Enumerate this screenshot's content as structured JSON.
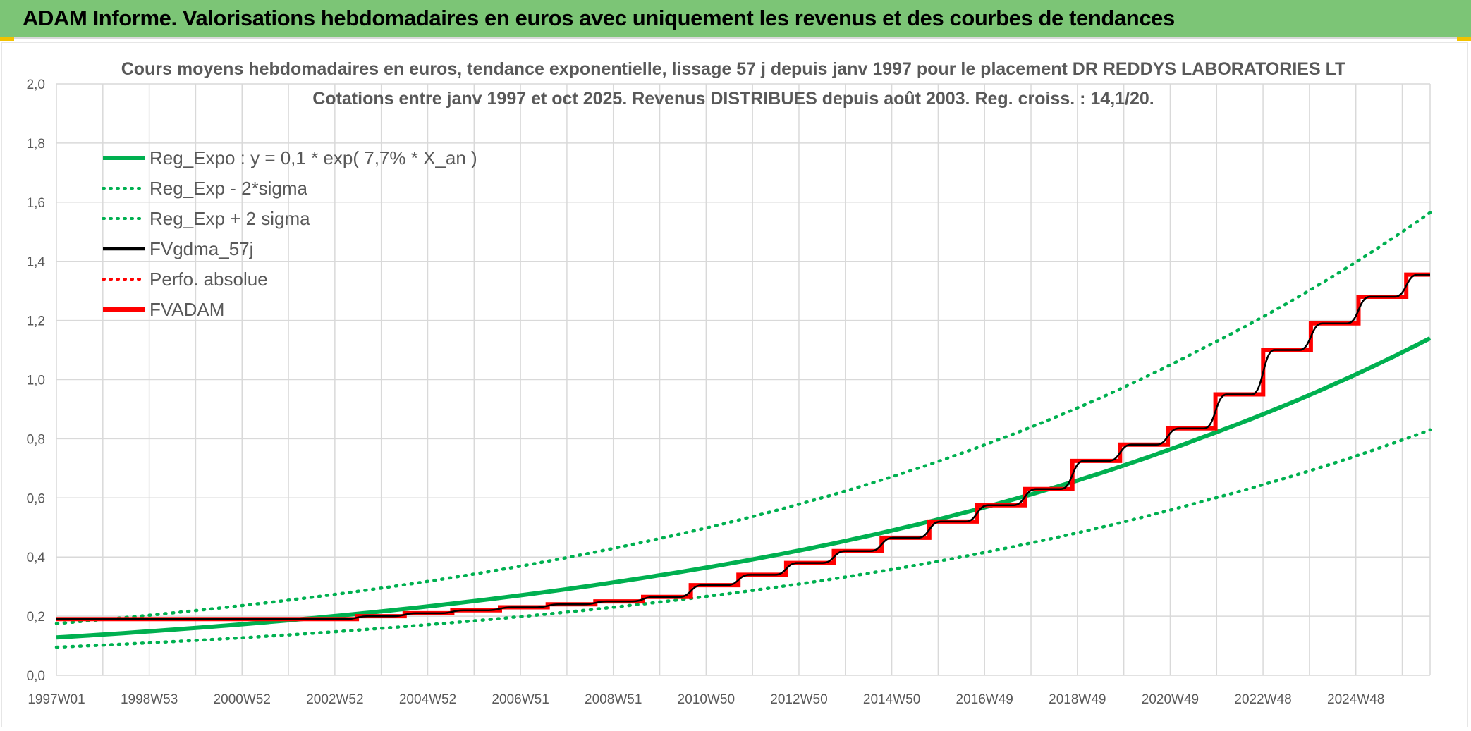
{
  "header": {
    "title": "ADAM Informe. Valorisations hebdomadaires en euros avec uniquement les revenus et des courbes de tendances"
  },
  "colors": {
    "banner": "#7cc576",
    "reg_green": "#00b050",
    "fv_black": "#000000",
    "adam_red": "#ff0000",
    "grid": "#d9d9d9",
    "text": "#595959"
  },
  "chart_data": {
    "type": "line",
    "title_lines": [
      "Cours moyens hebdomadaires en euros, tendance exponentielle, lissage 57 j depuis janv 1997 pour le placement DR REDDYS LABORATORIES LT",
      "Cotations entre janv 1997 et oct 2025. Revenus DISTRIBUES depuis août 2003. Reg. croiss. : 14,1/20."
    ],
    "x_tick_labels": [
      "1997W01",
      "1998W53",
      "2000W52",
      "2002W52",
      "2004W52",
      "2006W51",
      "2008W51",
      "2010W50",
      "2012W50",
      "2014W50",
      "2016W49",
      "2018W49",
      "2020W49",
      "2022W48",
      "2024W48"
    ],
    "x_range": [
      1997.0,
      2025.8
    ],
    "y_range": [
      0,
      2.0
    ],
    "y_ticks": [
      "0,0",
      "0,2",
      "0,4",
      "0,6",
      "0,8",
      "1,0",
      "1,2",
      "1,4",
      "1,6",
      "1,8",
      "2,0"
    ],
    "grid": true,
    "legend_position": "top-left",
    "legend": [
      {
        "label": "Reg_Expo : y = 0,1 * exp( 7,7% *  X_an )",
        "style": "solid-thick",
        "color": "#00b050"
      },
      {
        "label": "Reg_Exp - 2*sigma",
        "style": "dotted",
        "color": "#00b050"
      },
      {
        "label": "Reg_Exp + 2 sigma",
        "style": "dotted",
        "color": "#00b050"
      },
      {
        "label": "FVgdma_57j",
        "style": "solid",
        "color": "#000000"
      },
      {
        "label": "Perfo. absolue",
        "style": "dotted",
        "color": "#ff0000"
      },
      {
        "label": "FVADAM",
        "style": "solid-thick",
        "color": "#ff0000"
      }
    ],
    "series": [
      {
        "name": "Reg_Expo : y = 0,1 * exp( 7,7% *  X_an )",
        "x": [
          1997.0,
          2001.0,
          2005.0,
          2009.0,
          2013.0,
          2017.0,
          2021.0,
          2025.8
        ],
        "values": [
          0.128,
          0.174,
          0.237,
          0.322,
          0.436,
          0.592,
          0.803,
          1.14
        ]
      },
      {
        "name": "Reg_Exp - 2*sigma",
        "x": [
          1997.0,
          2001.0,
          2005.0,
          2009.0,
          2013.0,
          2017.0,
          2021.0,
          2025.8
        ],
        "values": [
          0.095,
          0.128,
          0.174,
          0.236,
          0.319,
          0.433,
          0.587,
          0.83
        ]
      },
      {
        "name": "Reg_Exp + 2 sigma",
        "x": [
          1997.0,
          2001.0,
          2005.0,
          2009.0,
          2013.0,
          2017.0,
          2021.0,
          2025.8
        ],
        "values": [
          0.175,
          0.238,
          0.323,
          0.44,
          0.598,
          0.812,
          1.103,
          1.565
        ]
      },
      {
        "name": "FVADAM",
        "step_x": [
          1997.0,
          2003.3,
          2004.3,
          2005.3,
          2006.3,
          2007.3,
          2008.3,
          2009.3,
          2010.3,
          2011.3,
          2012.3,
          2013.3,
          2014.3,
          2015.3,
          2016.3,
          2017.3,
          2018.3,
          2019.3,
          2020.3,
          2021.3,
          2022.3,
          2023.3,
          2024.3,
          2025.3
        ],
        "step_values": [
          0.19,
          0.2,
          0.21,
          0.22,
          0.23,
          0.24,
          0.25,
          0.265,
          0.305,
          0.34,
          0.38,
          0.42,
          0.465,
          0.52,
          0.575,
          0.63,
          0.725,
          0.78,
          0.835,
          0.95,
          1.1,
          1.19,
          1.28,
          1.355
        ],
        "x_end": 2025.8
      },
      {
        "name": "FVgdma_57j",
        "step_x": [
          1997.0,
          2003.3,
          2004.3,
          2005.3,
          2006.3,
          2007.3,
          2008.3,
          2009.3,
          2010.3,
          2011.3,
          2012.3,
          2013.3,
          2014.3,
          2015.3,
          2016.3,
          2017.3,
          2018.3,
          2019.3,
          2020.3,
          2021.3,
          2022.3,
          2023.3,
          2024.3,
          2025.3
        ],
        "step_values": [
          0.19,
          0.2,
          0.21,
          0.22,
          0.23,
          0.24,
          0.25,
          0.265,
          0.305,
          0.34,
          0.38,
          0.42,
          0.465,
          0.52,
          0.575,
          0.63,
          0.725,
          0.78,
          0.835,
          0.95,
          1.1,
          1.19,
          1.28,
          1.355
        ],
        "x_end": 2025.8
      }
    ]
  }
}
